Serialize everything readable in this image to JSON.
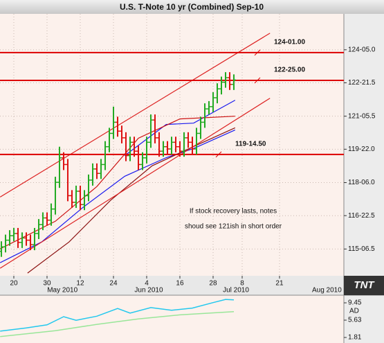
{
  "chart_data": [
    {
      "type": "ohlc",
      "title": "U.S. T-Note 10 yr (Combined) Sep-10",
      "logo": "TNT",
      "up_color": "#22aa22",
      "down_color": "#dd1111",
      "xlim": [
        -3.33,
        79.5
      ],
      "ylim": [
        114.0,
        125.77
      ],
      "grid": true,
      "yticks": [
        {
          "value": 124.15625,
          "label": "124-05.0"
        },
        {
          "value": 122.671875,
          "label": "122-21.5"
        },
        {
          "value": 121.171875,
          "label": "121-05.5"
        },
        {
          "value": 119.6875,
          "label": "119-22.0"
        },
        {
          "value": 118.1875,
          "label": "118-06.0"
        },
        {
          "value": 116.703125,
          "label": "116-22.5"
        },
        {
          "value": 115.203125,
          "label": "115-06.5"
        }
      ],
      "xticks": [
        {
          "value": 0,
          "label": "20"
        },
        {
          "value": 8,
          "label": "30"
        },
        {
          "value": 16,
          "label": "12"
        },
        {
          "value": 24,
          "label": "24"
        },
        {
          "value": 32,
          "label": "4"
        },
        {
          "value": 40,
          "label": "16"
        },
        {
          "value": 48,
          "label": "28"
        },
        {
          "value": 55,
          "label": "8"
        },
        {
          "value": 64,
          "label": "21"
        }
      ],
      "month_ticks": [
        {
          "value": 11.7,
          "label": "May 2010"
        },
        {
          "value": 32.5,
          "label": "Jun 2010"
        },
        {
          "value": 53.5,
          "label": "Jul 2010"
        },
        {
          "value": 75.4,
          "label": "Aug 2010"
        }
      ],
      "x": [
        -3,
        -2,
        -1,
        0,
        1,
        2,
        3,
        4,
        5,
        6,
        7,
        8,
        9,
        10,
        11,
        12,
        13,
        14,
        15,
        16,
        17,
        18,
        19,
        20,
        21,
        22,
        23,
        24,
        25,
        26,
        27,
        28,
        29,
        30,
        31,
        32,
        33,
        34,
        35,
        36,
        37,
        38,
        39,
        40,
        41,
        42,
        43,
        44,
        45,
        46,
        47,
        48,
        49,
        50,
        51,
        52,
        53
      ],
      "open": [
        115.1,
        115.3,
        115.6,
        115.8,
        115.9,
        115.5,
        115.7,
        115.6,
        115.4,
        115.9,
        116.3,
        116.6,
        116.5,
        117.0,
        118.2,
        119.3,
        119.0,
        117.6,
        117.3,
        117.8,
        117.2,
        117.6,
        118.3,
        118.8,
        118.6,
        119.0,
        119.8,
        120.4,
        120.9,
        120.5,
        120.2,
        119.4,
        120.0,
        119.6,
        119.0,
        119.3,
        120.0,
        121.0,
        120.2,
        119.6,
        119.8,
        119.7,
        120.0,
        119.8,
        119.6,
        120.2,
        120.0,
        119.7,
        120.4,
        120.9,
        121.5,
        121.6,
        122.0,
        122.4,
        122.7,
        122.9,
        122.6
      ],
      "high": [
        115.55,
        115.85,
        116.05,
        116.15,
        116.15,
        115.95,
        115.95,
        115.85,
        116.15,
        116.55,
        116.85,
        116.85,
        117.25,
        118.45,
        119.8,
        119.55,
        119.25,
        117.85,
        118.05,
        118.05,
        117.85,
        118.55,
        119.05,
        119.05,
        119.25,
        120.05,
        120.65,
        121.6,
        121.15,
        120.75,
        120.45,
        120.25,
        120.25,
        119.85,
        119.55,
        120.25,
        121.25,
        121.25,
        120.45,
        120.05,
        120.05,
        120.25,
        120.25,
        120.05,
        120.45,
        120.45,
        120.25,
        120.65,
        121.15,
        121.75,
        121.85,
        122.25,
        122.65,
        122.95,
        123.15,
        123.15,
        123.05
      ],
      "low": [
        114.85,
        115.05,
        115.35,
        115.55,
        115.25,
        115.25,
        115.35,
        115.15,
        115.15,
        115.65,
        116.05,
        116.25,
        116.25,
        116.75,
        117.95,
        118.75,
        117.35,
        117.05,
        117.05,
        116.95,
        116.95,
        117.35,
        118.05,
        118.35,
        118.35,
        118.75,
        119.55,
        120.15,
        120.25,
        119.95,
        119.15,
        119.15,
        119.35,
        118.75,
        118.75,
        119.05,
        119.75,
        119.95,
        119.35,
        119.35,
        119.45,
        119.45,
        119.55,
        119.35,
        119.35,
        119.75,
        119.45,
        119.45,
        120.15,
        120.65,
        121.25,
        121.35,
        121.75,
        122.15,
        122.45,
        122.35,
        122.35
      ],
      "close": [
        115.3,
        115.6,
        115.8,
        115.9,
        115.5,
        115.7,
        115.6,
        115.4,
        115.9,
        116.3,
        116.6,
        116.5,
        117.0,
        118.2,
        119.3,
        119.0,
        117.6,
        117.3,
        117.8,
        117.2,
        117.6,
        118.3,
        118.8,
        118.6,
        119.0,
        119.8,
        120.4,
        120.9,
        120.5,
        120.2,
        119.4,
        120.0,
        119.6,
        119.0,
        119.3,
        120.0,
        121.0,
        120.2,
        119.6,
        119.8,
        119.7,
        120.0,
        119.8,
        119.6,
        120.2,
        120.0,
        119.7,
        120.4,
        120.9,
        121.5,
        121.6,
        122.0,
        122.4,
        122.7,
        122.9,
        122.6,
        122.8
      ],
      "lines": [
        {
          "color": "#1a1aee",
          "x": [
            -3.3,
            6.7,
            16.7,
            26.7,
            36.7,
            43.3,
            53.3
          ],
          "values": [
            114.59,
            115.52,
            117.08,
            118.47,
            119.31,
            119.72,
            120.55
          ]
        },
        {
          "color": "#1a1aee",
          "x": [
            26.7,
            36.7,
            43.3,
            53.3
          ],
          "values": [
            119.4,
            120.8,
            120.86,
            121.89
          ]
        },
        {
          "color": "#cc1111",
          "x": [
            -3.3,
            10,
            20,
            30,
            40,
            53.3
          ],
          "values": [
            115.21,
            116.45,
            118.01,
            120.18,
            121.05,
            121.17
          ]
        },
        {
          "color": "#8b1010",
          "x": [
            3.3,
            13.3,
            23.3,
            33.3,
            43.3,
            53.3
          ],
          "values": [
            114.12,
            115.52,
            117.39,
            118.94,
            119.81,
            120.65
          ]
        },
        {
          "color": "#dd2222",
          "x": [
            -3.3,
            61.7
          ],
          "values": [
            117.54,
            124.9
          ]
        },
        {
          "color": "#dd2222",
          "x": [
            -3.3,
            61.7
          ],
          "values": [
            114.34,
            121.98
          ]
        }
      ],
      "level_color": "#dd0000",
      "levels": [
        {
          "value": 124.03125,
          "label": "124-01.00"
        },
        {
          "value": 122.78125,
          "label": "122-25.00"
        },
        {
          "value": 119.453125,
          "label": "119-14.50"
        }
      ],
      "annotation": [
        "If stock recovery lasts, notes",
        "shoud see 121ish in short order"
      ]
    },
    {
      "type": "line",
      "xlim": [
        -3.33,
        79.5
      ],
      "ylim": [
        0.59,
        10.83
      ],
      "yticks": [
        9.45,
        5.63,
        1.81
      ],
      "series": [
        {
          "name": "AD",
          "color": "#22c8ee",
          "x": [
            -3.3,
            3,
            8,
            12,
            15,
            20,
            25,
            28,
            33,
            38,
            43,
            48,
            51,
            53
          ],
          "values": [
            3.2,
            3.9,
            4.6,
            6.4,
            5.6,
            6.5,
            8.2,
            7.2,
            8.4,
            7.8,
            8.3,
            9.5,
            10.2,
            10.1
          ]
        },
        {
          "color": "#99e699",
          "x": [
            -3.3,
            10,
            20,
            30,
            40,
            53
          ],
          "values": [
            2.0,
            3.3,
            4.7,
            5.9,
            6.8,
            7.5
          ]
        }
      ]
    }
  ]
}
